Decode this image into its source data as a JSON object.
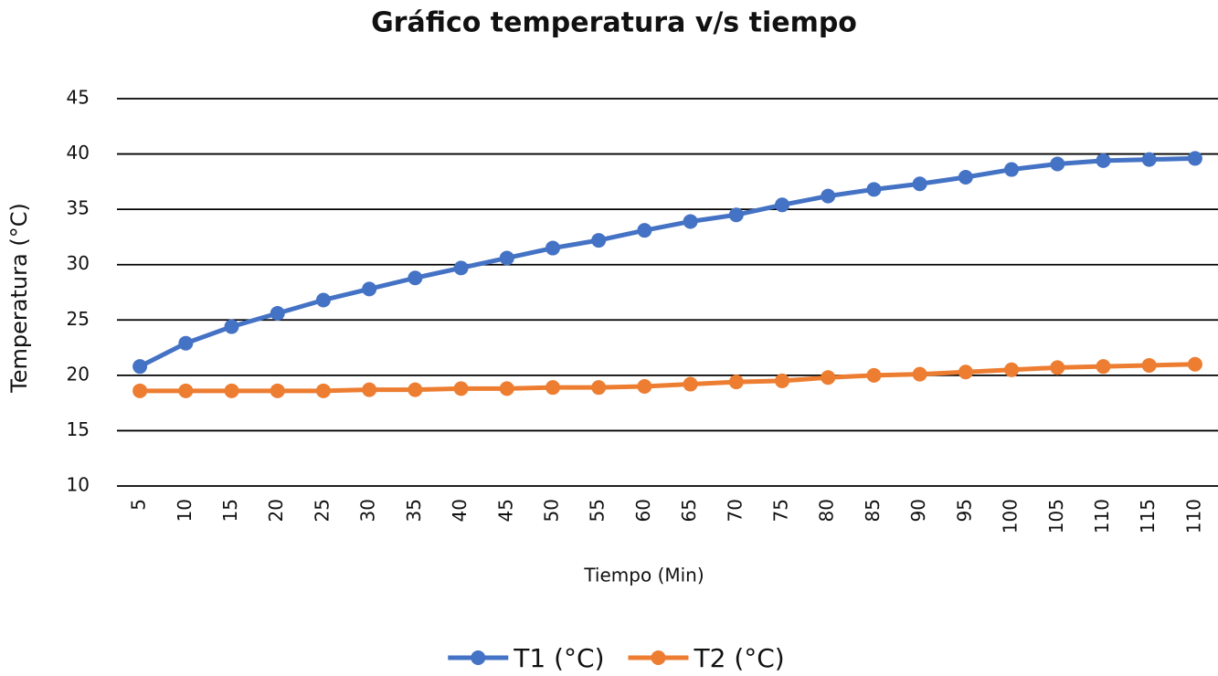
{
  "chart_data": {
    "type": "line",
    "title": "Gráfico temperatura v/s tiempo",
    "x_label": "Tiempo (Min)",
    "y_label": "Temperatura (°C)",
    "categories": [
      "5",
      "10",
      "15",
      "20",
      "25",
      "30",
      "35",
      "40",
      "45",
      "50",
      "55",
      "60",
      "65",
      "70",
      "75",
      "80",
      "85",
      "90",
      "95",
      "100",
      "105",
      "110",
      "115",
      "110"
    ],
    "series": [
      {
        "name": "T1 (°C)",
        "color": "#4472c4",
        "values": [
          20.8,
          22.9,
          24.4,
          25.6,
          26.8,
          27.8,
          28.8,
          29.7,
          30.6,
          31.5,
          32.2,
          33.1,
          33.9,
          34.5,
          35.4,
          36.2,
          36.8,
          37.3,
          37.9,
          38.6,
          39.1,
          39.4,
          39.5,
          39.6
        ]
      },
      {
        "name": "T2 (°C)",
        "color": "#ed7d31",
        "values": [
          18.6,
          18.6,
          18.6,
          18.6,
          18.6,
          18.7,
          18.7,
          18.8,
          18.8,
          18.9,
          18.9,
          19.0,
          19.2,
          19.4,
          19.5,
          19.8,
          20.0,
          20.1,
          20.3,
          20.5,
          20.7,
          20.8,
          20.9,
          21.0
        ]
      }
    ],
    "ylim": [
      10,
      45
    ],
    "yticks": [
      10,
      15,
      20,
      25,
      30,
      35,
      40,
      45
    ],
    "grid": true,
    "legend": "bottom"
  }
}
